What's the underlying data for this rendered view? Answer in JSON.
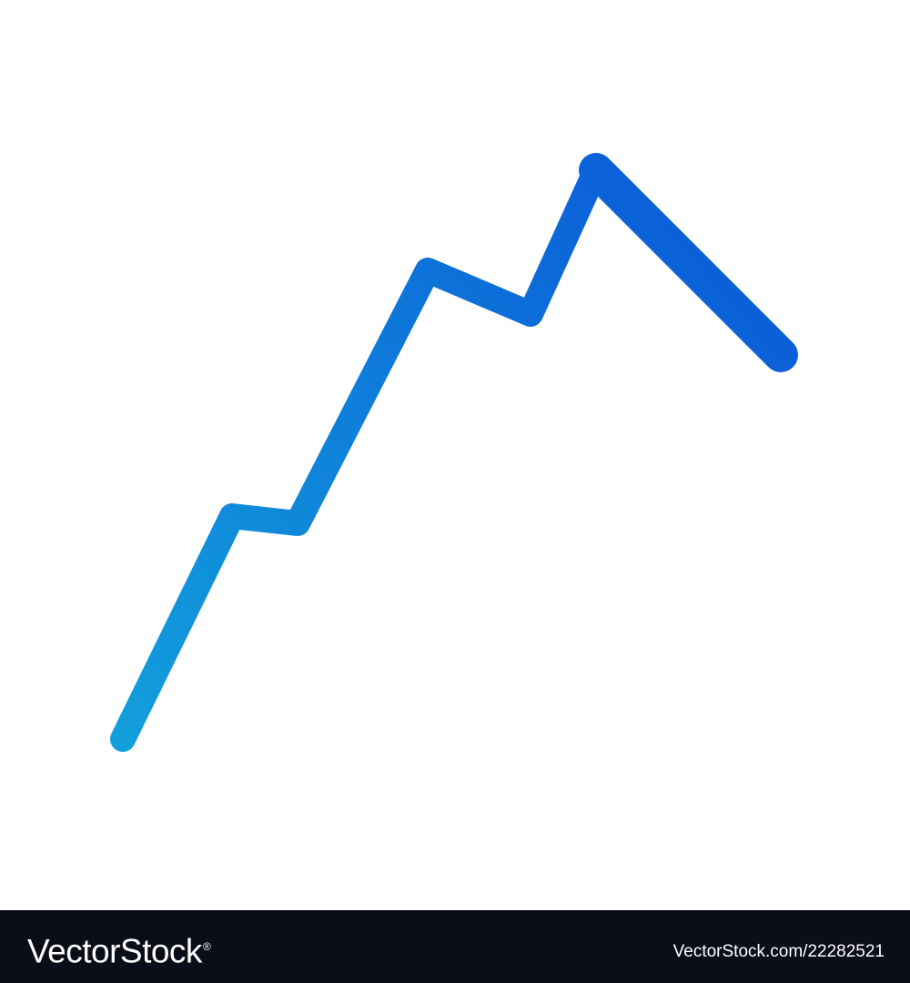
{
  "artwork": {
    "icon": "line-chart-trend-icon",
    "gradient_start": "#12a0dc",
    "gradient_end": "#0a55d7"
  },
  "footer": {
    "brand": "VectorStock",
    "registered_mark": "®",
    "image_id": "VectorStock.com/22282521",
    "background": "#0b0d18",
    "text_color": "#ffffff"
  }
}
